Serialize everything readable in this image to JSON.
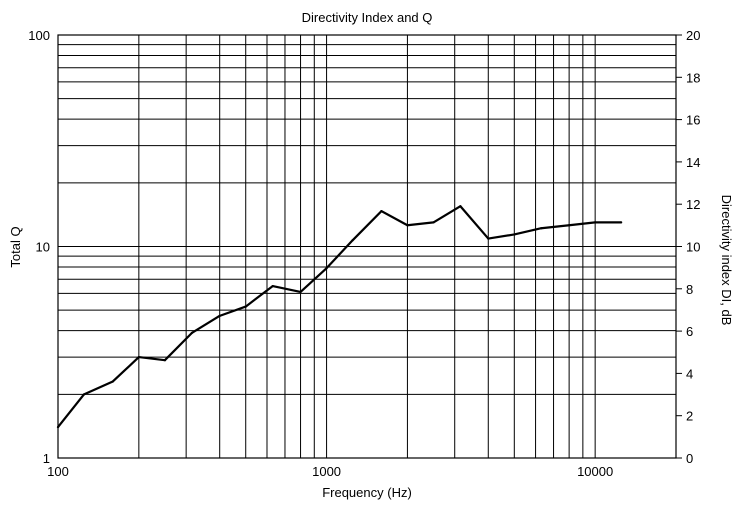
{
  "chart_data": {
    "type": "line",
    "title": "Directivity Index and Q",
    "xlabel": "Frequency (Hz)",
    "ylabel": "Total Q",
    "y2label": "Directivity index DI, dB",
    "xscale": "log",
    "yscale": "log",
    "xlim": [
      100,
      20000
    ],
    "ylim": [
      1,
      100
    ],
    "y2lim": [
      0,
      20
    ],
    "grid": true,
    "x_ticks": [
      100,
      1000,
      10000
    ],
    "x_tick_labels": [
      "100",
      "1000",
      "10000"
    ],
    "y_ticks": [
      1,
      10,
      100
    ],
    "y_tick_labels": [
      "1",
      "10",
      "100"
    ],
    "y2_ticks": [
      0,
      2,
      4,
      6,
      8,
      10,
      12,
      14,
      16,
      18,
      20
    ],
    "y2_tick_labels": [
      "0",
      "2",
      "4",
      "6",
      "8",
      "10",
      "12",
      "14",
      "16",
      "18",
      "20"
    ],
    "line_color": "#000000",
    "series": [
      {
        "x": [
          100,
          125,
          160,
          200,
          250,
          315,
          400,
          500,
          630,
          800,
          1000,
          1250,
          1600,
          2000,
          2500,
          3150,
          4000,
          5000,
          6300,
          8000,
          10000,
          12500
        ],
        "y": [
          1.4,
          2.0,
          2.3,
          3.0,
          2.9,
          3.9,
          4.7,
          5.2,
          6.5,
          6.1,
          7.9,
          10.7,
          14.7,
          12.6,
          13.0,
          15.5,
          10.9,
          11.4,
          12.2,
          12.6,
          13.0,
          13.0
        ]
      }
    ]
  }
}
